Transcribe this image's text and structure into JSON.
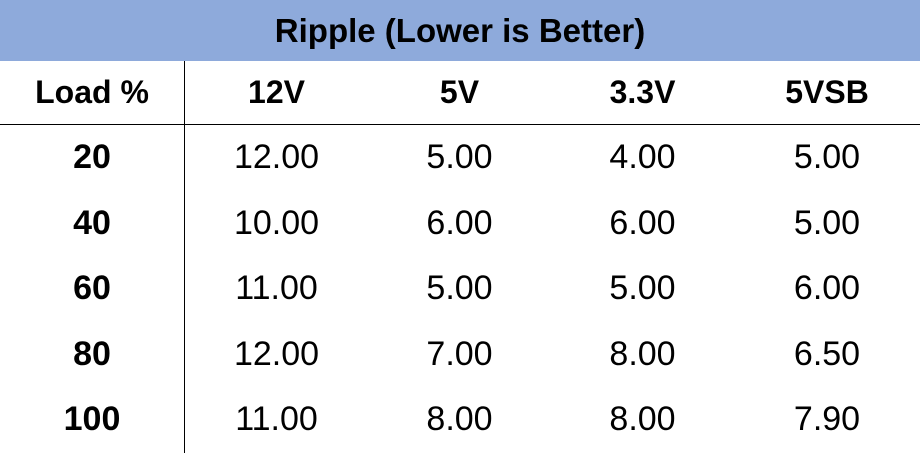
{
  "colors": {
    "title_band": "#8eaadb",
    "text": "#000000",
    "rule": "#000000",
    "background": "#ffffff"
  },
  "chart_data": {
    "type": "table",
    "title": "Ripple (Lower is Better)",
    "columns": [
      "Load %",
      "12V",
      "5V",
      "3.3V",
      "5VSB"
    ],
    "rows": [
      [
        "20",
        "12.00",
        "5.00",
        "4.00",
        "5.00"
      ],
      [
        "40",
        "10.00",
        "6.00",
        "6.00",
        "5.00"
      ],
      [
        "60",
        "11.00",
        "5.00",
        "5.00",
        "6.00"
      ],
      [
        "80",
        "12.00",
        "7.00",
        "8.00",
        "6.50"
      ],
      [
        "100",
        "11.00",
        "8.00",
        "8.00",
        "7.90"
      ]
    ]
  }
}
